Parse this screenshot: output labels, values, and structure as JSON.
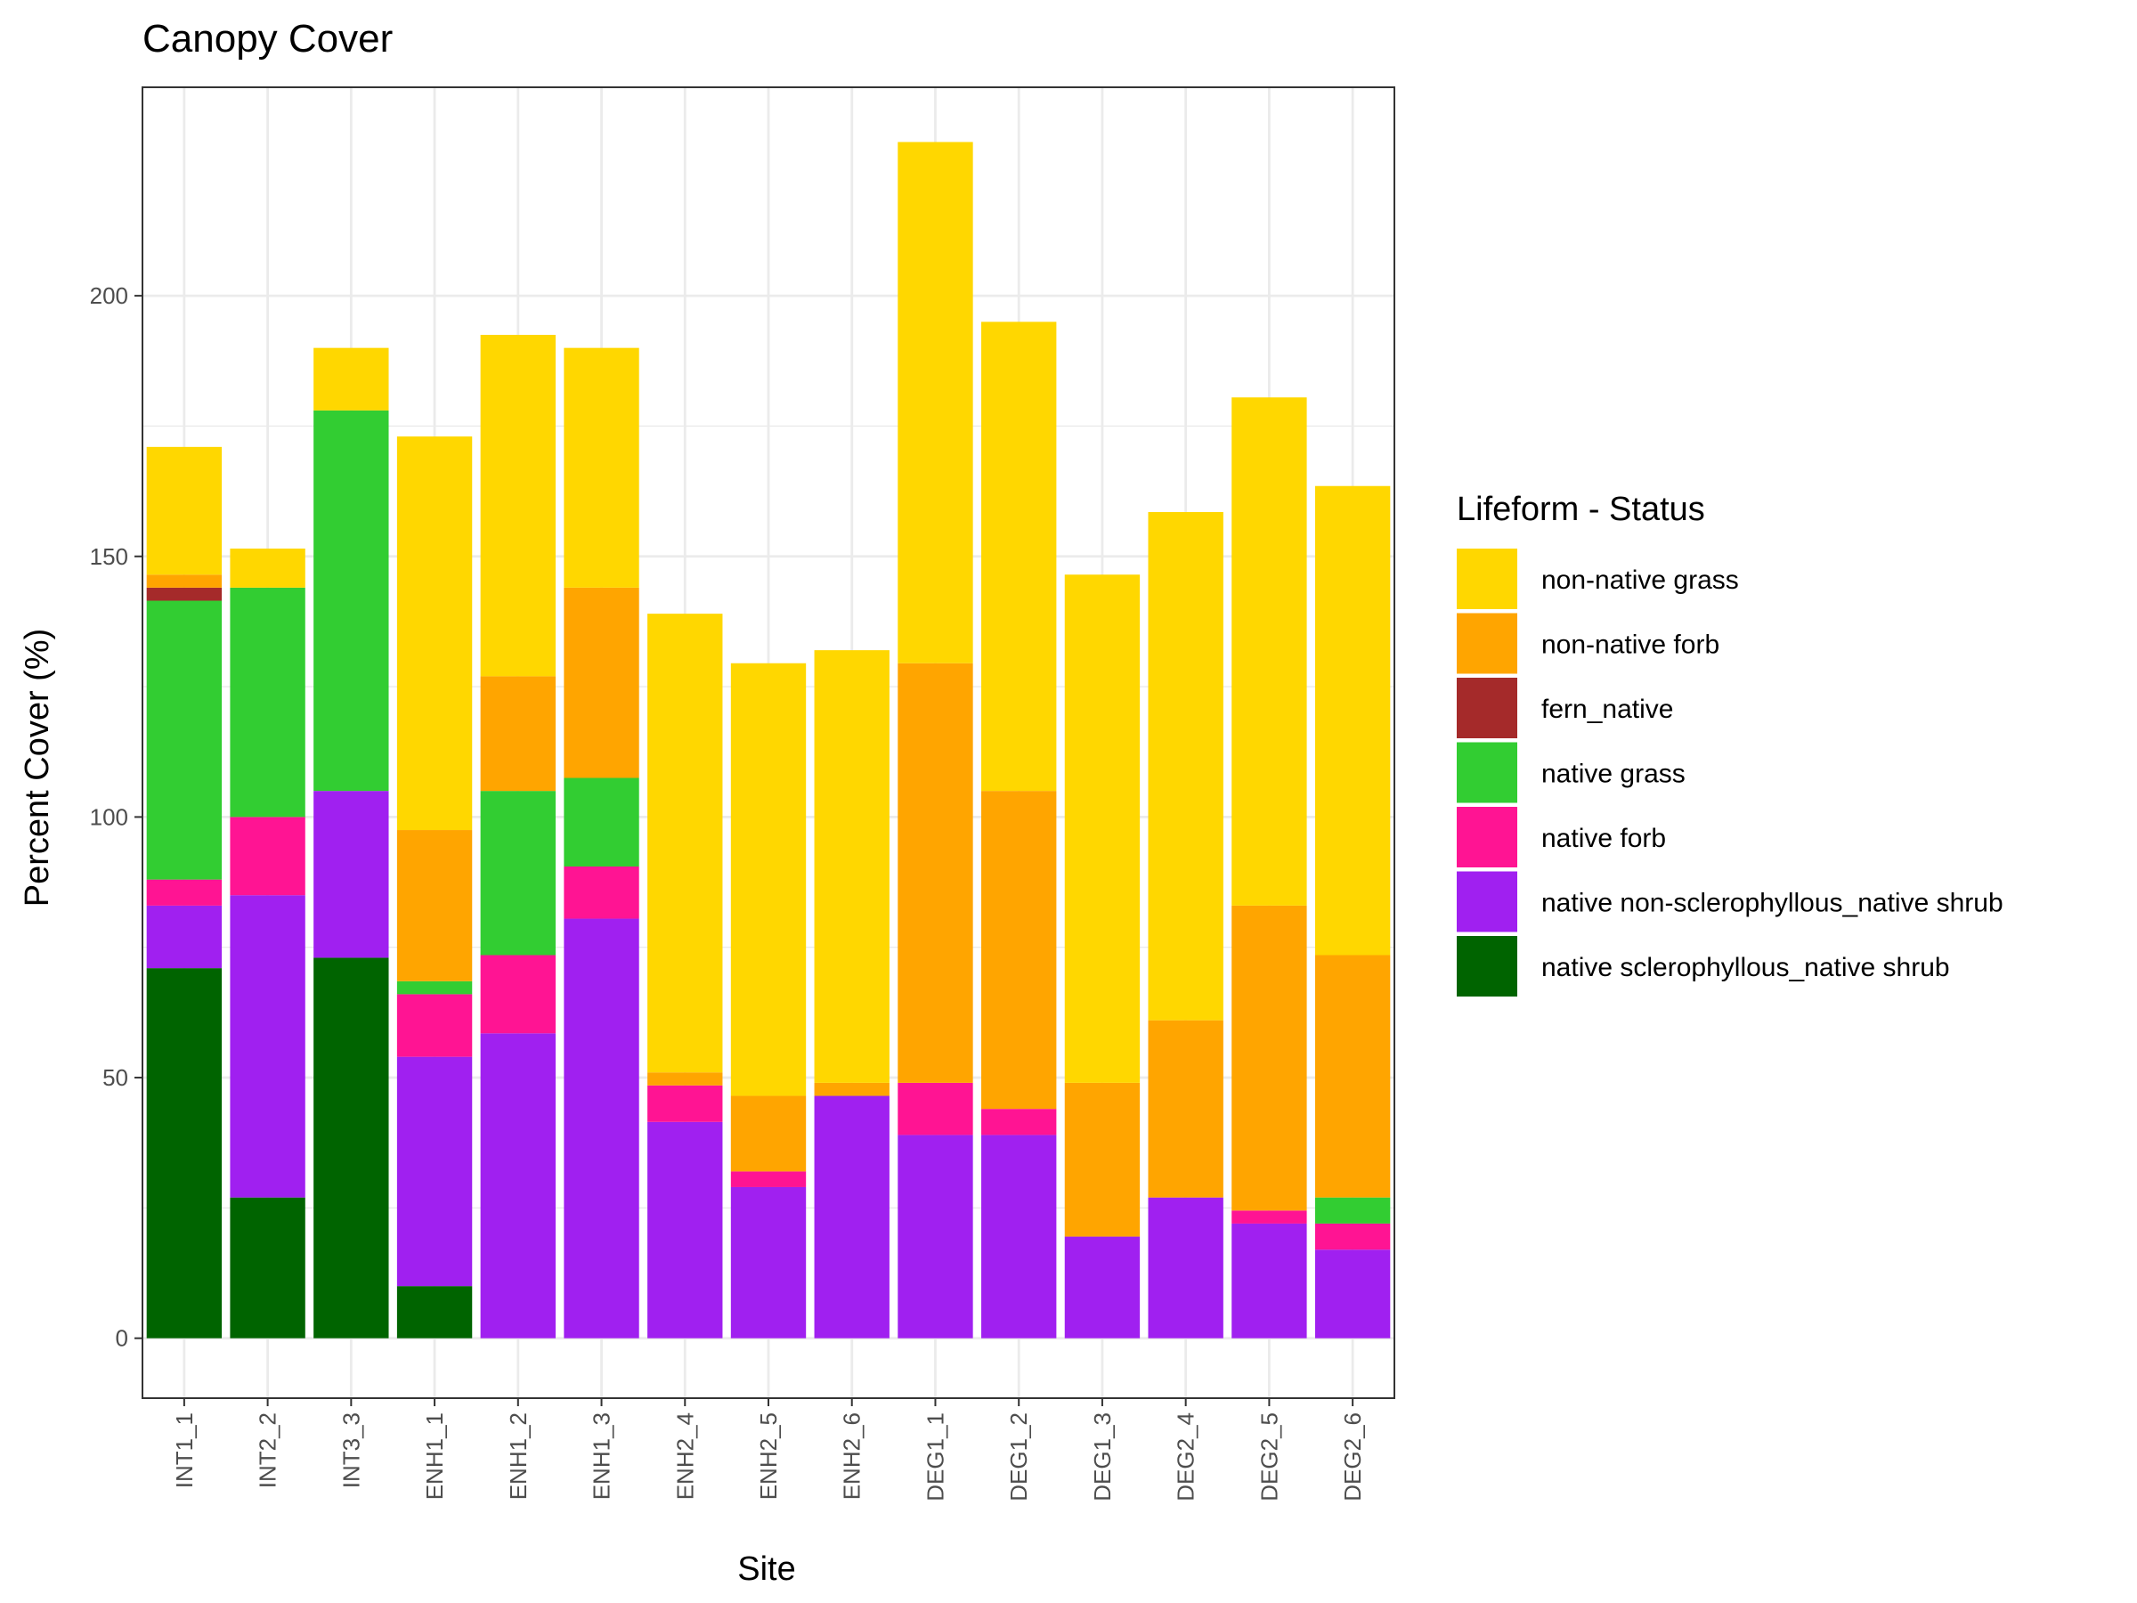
{
  "chart_data": {
    "type": "bar",
    "stacked": true,
    "title": "Canopy Cover",
    "xlabel": "Site",
    "ylabel": "Percent Cover (%)",
    "ylim": [
      -11.5,
      240
    ],
    "y_ticks": [
      0,
      50,
      100,
      150,
      200
    ],
    "grid": true,
    "legend_position": "right",
    "legend_title": "Lifeform - Status",
    "categories": [
      "INT1_1",
      "INT2_2",
      "INT3_3",
      "ENH1_1",
      "ENH1_2",
      "ENH1_3",
      "ENH2_4",
      "ENH2_5",
      "ENH2_6",
      "DEG1_1",
      "DEG1_2",
      "DEG1_3",
      "DEG2_4",
      "DEG2_5",
      "DEG2_6"
    ],
    "series": [
      {
        "name": "native sclerophyllous_native shrub",
        "color": "#006400",
        "values": [
          71,
          27,
          73,
          10,
          0,
          0,
          0,
          0,
          0,
          0,
          0,
          0,
          0,
          0,
          0
        ]
      },
      {
        "name": "native non-sclerophyllous_native shrub",
        "color": "#A020F0",
        "values": [
          12,
          58,
          32,
          44,
          58.5,
          80.5,
          41.5,
          29,
          46.5,
          39,
          39,
          19.5,
          27,
          22,
          17
        ]
      },
      {
        "name": "native forb",
        "color": "#FF1493",
        "values": [
          5,
          15,
          0,
          12,
          15,
          10,
          7,
          3,
          0,
          10,
          5,
          0,
          0,
          2.5,
          5
        ]
      },
      {
        "name": "native grass",
        "color": "#32CD32",
        "values": [
          53.5,
          44,
          73,
          2.5,
          31.5,
          17,
          0,
          0,
          0,
          0,
          0,
          0,
          0,
          0,
          5
        ]
      },
      {
        "name": "fern_native",
        "color": "#A52A2A",
        "values": [
          2.5,
          0,
          0,
          0,
          0,
          0,
          0,
          0,
          0,
          0,
          0,
          0,
          0,
          0,
          0
        ]
      },
      {
        "name": "non-native forb",
        "color": "#FFA500",
        "values": [
          2.5,
          0,
          0,
          29,
          22,
          36.5,
          2.5,
          14.5,
          2.5,
          80.5,
          61,
          29.5,
          34,
          58.5,
          46.5
        ]
      },
      {
        "name": "non-native grass",
        "color": "#FFD700",
        "values": [
          24.5,
          7.5,
          12,
          75.5,
          65.5,
          46,
          88,
          83,
          83,
          100,
          90,
          97.5,
          97.5,
          97.5,
          90
        ]
      }
    ],
    "legend_order": [
      "non-native grass",
      "non-native forb",
      "fern_native",
      "native grass",
      "native forb",
      "native non-sclerophyllous_native shrub",
      "native sclerophyllous_native shrub"
    ]
  }
}
